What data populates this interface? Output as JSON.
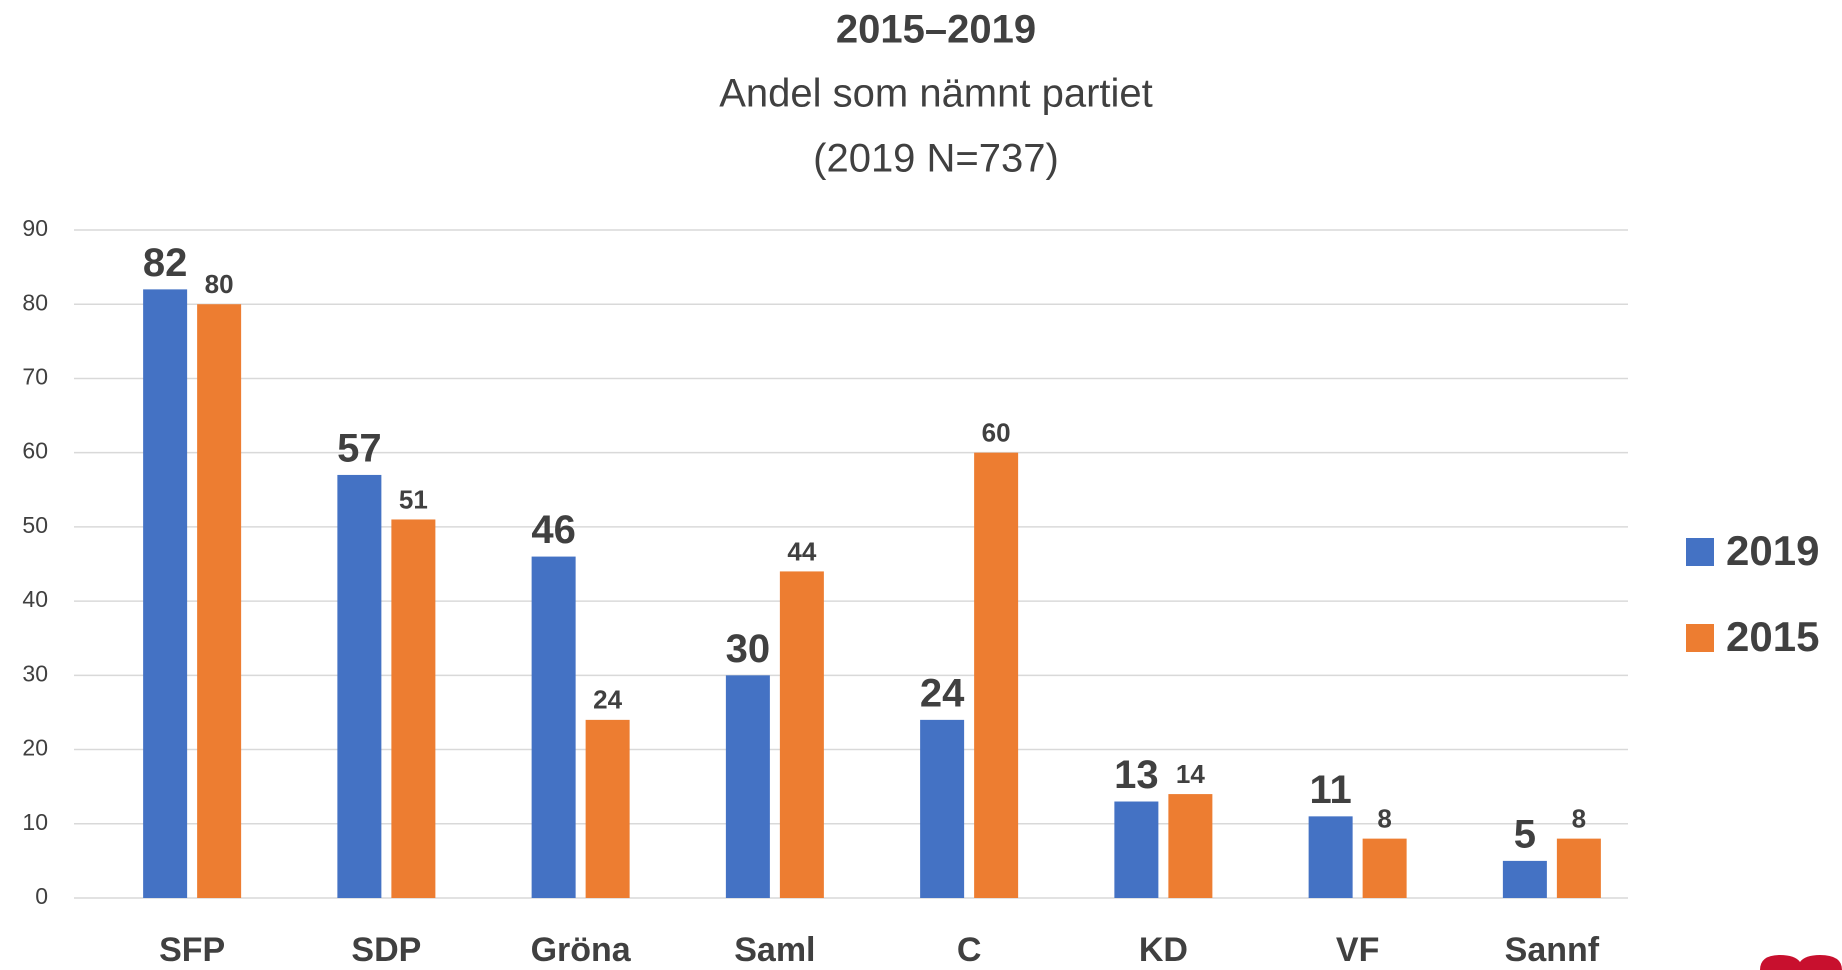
{
  "chart_data": {
    "type": "bar",
    "title": "2015–2019",
    "subtitle": [
      "Andel som nämnt partiet",
      "(2019 N=737)"
    ],
    "categories": [
      "SFP",
      "SDP",
      "Gröna",
      "Saml",
      "C",
      "KD",
      "VF",
      "Sannf"
    ],
    "series": [
      {
        "name": "2019",
        "color": "#4472c4",
        "values": [
          82,
          57,
          46,
          30,
          24,
          13,
          11,
          5
        ]
      },
      {
        "name": "2015",
        "color": "#ed7d31",
        "values": [
          80,
          51,
          24,
          44,
          60,
          14,
          8,
          8
        ]
      }
    ],
    "ylim": [
      0,
      90
    ],
    "yticks": [
      0,
      10,
      20,
      30,
      40,
      50,
      60,
      70,
      80,
      90
    ],
    "grid": true,
    "legend": "right"
  }
}
